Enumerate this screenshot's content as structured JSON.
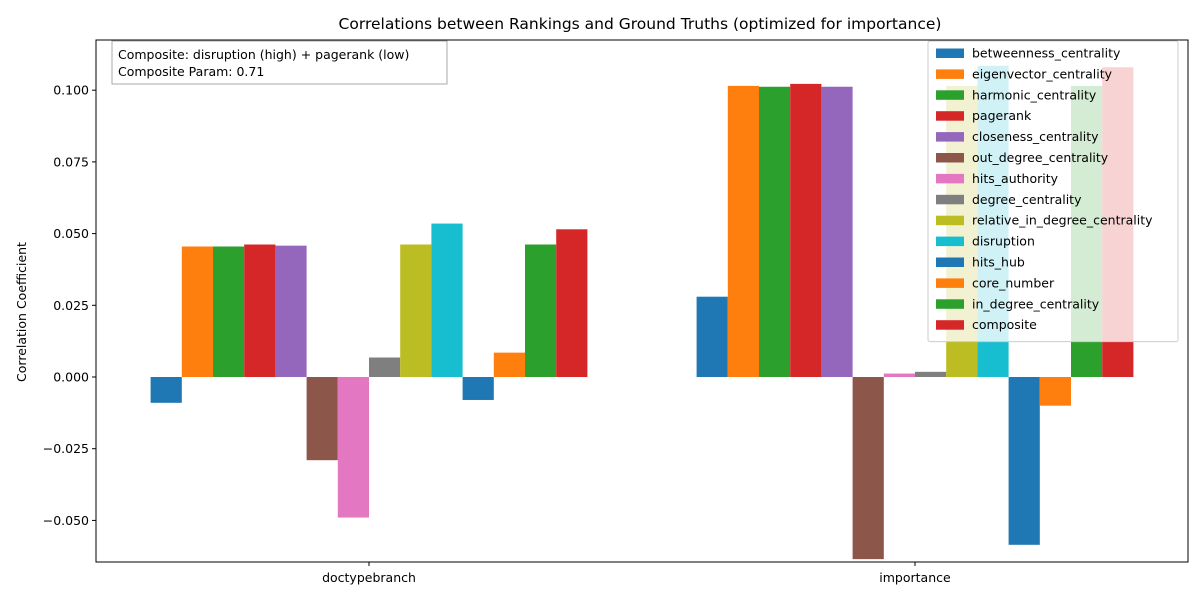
{
  "chart_data": {
    "type": "bar",
    "title": "Correlations between Rankings and Ground Truths (optimized for importance)",
    "xlabel": "",
    "ylabel": "Correlation Coefficient",
    "categories": [
      "doctypebranch",
      "importance"
    ],
    "ylim": [
      -0.0645,
      0.1175
    ],
    "yticks": [
      -0.05,
      -0.025,
      0.0,
      0.025,
      0.05,
      0.075,
      0.1
    ],
    "ytick_labels": [
      "−0.050",
      "−0.025",
      "0.000",
      "0.025",
      "0.050",
      "0.075",
      "0.100"
    ],
    "legend_position": "top-right",
    "annotation": {
      "line1": "Composite: disruption (high) + pagerank (low)",
      "line2": "Composite Param: 0.71"
    },
    "series": [
      {
        "name": "betweenness_centrality",
        "color": "#1f77b4",
        "values": [
          -0.009,
          0.028
        ]
      },
      {
        "name": "eigenvector_centrality",
        "color": "#ff7f0e",
        "values": [
          0.0455,
          0.1015
        ]
      },
      {
        "name": "harmonic_centrality",
        "color": "#2ca02c",
        "values": [
          0.0455,
          0.1012
        ]
      },
      {
        "name": "pagerank",
        "color": "#d62728",
        "values": [
          0.0462,
          0.1022
        ]
      },
      {
        "name": "closeness_centrality",
        "color": "#9467bd",
        "values": [
          0.0458,
          0.1012
        ]
      },
      {
        "name": "out_degree_centrality",
        "color": "#8c564b",
        "values": [
          -0.029,
          -0.0635
        ]
      },
      {
        "name": "hits_authority",
        "color": "#e377c2",
        "values": [
          -0.049,
          0.0012
        ]
      },
      {
        "name": "degree_centrality",
        "color": "#7f7f7f",
        "values": [
          0.0068,
          0.0018
        ]
      },
      {
        "name": "relative_in_degree_centrality",
        "color": "#bcbd22",
        "values": [
          0.0462,
          0.1015
        ]
      },
      {
        "name": "disruption",
        "color": "#17becf",
        "values": [
          0.0535,
          0.1085
        ]
      },
      {
        "name": "hits_hub",
        "color": "#1f77b4",
        "values": [
          -0.008,
          -0.0585
        ]
      },
      {
        "name": "core_number",
        "color": "#ff7f0e",
        "values": [
          0.0085,
          -0.01
        ]
      },
      {
        "name": "in_degree_centrality",
        "color": "#2ca02c",
        "values": [
          0.0462,
          0.1015
        ]
      },
      {
        "name": "composite",
        "color": "#d62728",
        "values": [
          0.0515,
          0.108
        ]
      }
    ]
  }
}
